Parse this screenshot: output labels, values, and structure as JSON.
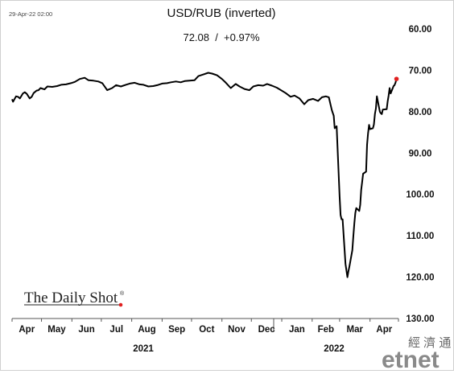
{
  "timestamp": "29-Apr-22 02:00",
  "chart_data": {
    "type": "line",
    "title": "USD/RUB (inverted)",
    "subtitle": "72.08  /  +0.97%",
    "y_axis": {
      "inverted": true,
      "ylim": [
        60,
        130
      ],
      "ticks": [
        "60.00",
        "70.00",
        "80.00",
        "90.00",
        "100.00",
        "110.00",
        "120.00",
        "130.00"
      ],
      "position": "right"
    },
    "x_axis": {
      "months": [
        "Apr",
        "May",
        "Jun",
        "Jul",
        "Aug",
        "Sep",
        "Oct",
        "Nov",
        "Dec",
        "Jan",
        "Feb",
        "Mar",
        "Apr"
      ],
      "years": [
        "2021",
        "2022"
      ]
    },
    "series": [
      {
        "color": "#000000",
        "last_point_color": "#e02020",
        "x": [
          "2021-04-01",
          "2021-04-02",
          "2021-04-05",
          "2021-04-07",
          "2021-04-09",
          "2021-04-12",
          "2021-04-14",
          "2021-04-16",
          "2021-04-19",
          "2021-04-21",
          "2021-04-23",
          "2021-04-26",
          "2021-04-28",
          "2021-04-30",
          "2021-05-04",
          "2021-05-07",
          "2021-05-12",
          "2021-05-17",
          "2021-05-21",
          "2021-05-26",
          "2021-05-31",
          "2021-06-04",
          "2021-06-09",
          "2021-06-14",
          "2021-06-18",
          "2021-06-23",
          "2021-06-28",
          "2021-07-02",
          "2021-07-07",
          "2021-07-12",
          "2021-07-16",
          "2021-07-21",
          "2021-07-26",
          "2021-07-30",
          "2021-08-04",
          "2021-08-09",
          "2021-08-13",
          "2021-08-18",
          "2021-08-23",
          "2021-08-27",
          "2021-09-01",
          "2021-09-06",
          "2021-09-10",
          "2021-09-15",
          "2021-09-20",
          "2021-09-24",
          "2021-09-29",
          "2021-10-04",
          "2021-10-08",
          "2021-10-13",
          "2021-10-18",
          "2021-10-22",
          "2021-10-27",
          "2021-11-01",
          "2021-11-05",
          "2021-11-10",
          "2021-11-15",
          "2021-11-19",
          "2021-11-24",
          "2021-11-29",
          "2021-12-03",
          "2021-12-08",
          "2021-12-13",
          "2021-12-17",
          "2021-12-22",
          "2021-12-27",
          "2022-01-05",
          "2022-01-10",
          "2022-01-14",
          "2022-01-19",
          "2022-01-24",
          "2022-01-28",
          "2022-02-02",
          "2022-02-07",
          "2022-02-11",
          "2022-02-15",
          "2022-02-18",
          "2022-02-21",
          "2022-02-23",
          "2022-02-24",
          "2022-02-25",
          "2022-02-26",
          "2022-02-28",
          "2022-03-01",
          "2022-03-02",
          "2022-03-03",
          "2022-03-04",
          "2022-03-07",
          "2022-03-09",
          "2022-03-10",
          "2022-03-11",
          "2022-03-14",
          "2022-03-15",
          "2022-03-16",
          "2022-03-17",
          "2022-03-18",
          "2022-03-21",
          "2022-03-22",
          "2022-03-23",
          "2022-03-24",
          "2022-03-25",
          "2022-03-28",
          "2022-03-29",
          "2022-03-30",
          "2022-03-31",
          "2022-04-01",
          "2022-04-04",
          "2022-04-05",
          "2022-04-06",
          "2022-04-07",
          "2022-04-08",
          "2022-04-11",
          "2022-04-12",
          "2022-04-13",
          "2022-04-14",
          "2022-04-18",
          "2022-04-19",
          "2022-04-20",
          "2022-04-21",
          "2022-04-22",
          "2022-04-25",
          "2022-04-26",
          "2022-04-27",
          "2022-04-28"
        ],
        "y": [
          77.0,
          77.6,
          76.3,
          76.4,
          76.8,
          75.6,
          75.3,
          75.7,
          76.8,
          76.4,
          75.5,
          74.9,
          74.8,
          74.3,
          74.6,
          73.9,
          74.0,
          73.8,
          73.5,
          73.4,
          73.1,
          72.8,
          72.1,
          71.8,
          72.4,
          72.5,
          72.7,
          73.1,
          74.8,
          74.3,
          73.6,
          73.9,
          73.5,
          73.2,
          73.0,
          73.4,
          73.5,
          73.9,
          73.8,
          73.6,
          73.2,
          73.1,
          72.9,
          72.7,
          72.9,
          72.6,
          72.5,
          72.4,
          71.4,
          71.0,
          70.6,
          70.8,
          71.2,
          72.1,
          73.0,
          74.3,
          73.3,
          73.9,
          74.5,
          74.8,
          73.9,
          73.6,
          73.7,
          73.3,
          73.7,
          74.2,
          75.5,
          76.4,
          76.1,
          76.8,
          78.2,
          77.2,
          76.9,
          77.4,
          76.5,
          76.3,
          76.5,
          79.6,
          81.0,
          84.0,
          83.8,
          83.5,
          95.0,
          100.5,
          105.0,
          106.0,
          106.0,
          116.8,
          120.0,
          118.5,
          117.4,
          113.5,
          110.0,
          107.0,
          104.5,
          103.3,
          104.0,
          102.5,
          98.9,
          97.0,
          95.0,
          94.5,
          88.0,
          85.3,
          83.2,
          84.2,
          84.0,
          83.1,
          80.5,
          79.2,
          76.3,
          80.0,
          80.4,
          80.6,
          79.5,
          79.4,
          77.5,
          76.1,
          74.3,
          75.6,
          73.8,
          73.6,
          73.0,
          72.08
        ]
      }
    ]
  },
  "branding": {
    "daily_shot": "The Daily Shot",
    "daily_shot_mark": "®",
    "etnet_cn": "經 濟 通",
    "etnet": "etnet"
  }
}
